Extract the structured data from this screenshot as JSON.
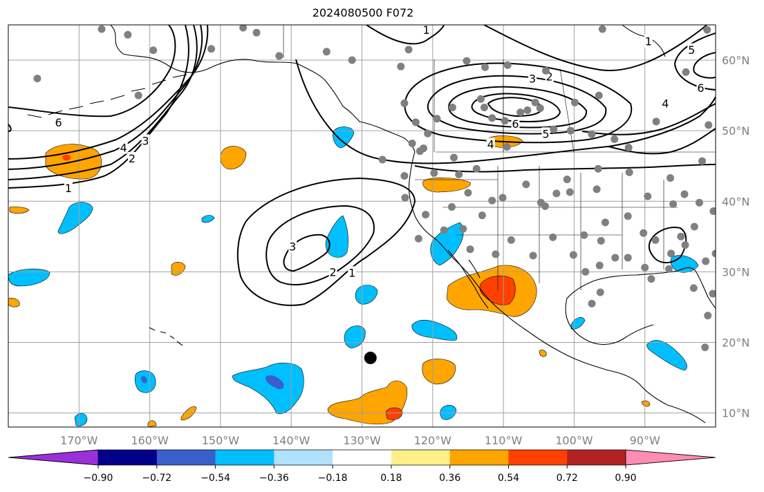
{
  "title": "2024080500 F072",
  "colors": {
    "station_marker": "#808080",
    "storm_marker": "#000000",
    "contour_line": "#000000",
    "gridline": "#a0a0a0",
    "coastline": "#000000"
  },
  "map": {
    "projection": "equirectangular",
    "lon_range": [
      -180,
      -80
    ],
    "lat_range": [
      8,
      65
    ],
    "grid": true,
    "lon_ticks": [
      {
        "lon": -170,
        "label": "170°W"
      },
      {
        "lon": -160,
        "label": "160°W"
      },
      {
        "lon": -150,
        "label": "150°W"
      },
      {
        "lon": -140,
        "label": "140°W"
      },
      {
        "lon": -130,
        "label": "130°W"
      },
      {
        "lon": -120,
        "label": "120°W"
      },
      {
        "lon": -110,
        "label": "110°W"
      },
      {
        "lon": -100,
        "label": "100°W"
      },
      {
        "lon": -90,
        "label": "90°W"
      }
    ],
    "lat_ticks": [
      {
        "lat": 60,
        "label": "60°N"
      },
      {
        "lat": 50,
        "label": "50°N"
      },
      {
        "lat": 40,
        "label": "40°N"
      },
      {
        "lat": 30,
        "label": "30°N"
      },
      {
        "lat": 20,
        "label": "20°N"
      },
      {
        "lat": 10,
        "label": "10°N"
      }
    ]
  },
  "colorbar": {
    "extend": "both",
    "segments": [
      {
        "color": "#9b30d9"
      },
      {
        "color": "#00008b"
      },
      {
        "color": "#3a5fcd"
      },
      {
        "color": "#00bfff"
      },
      {
        "color": "#b0e2ff"
      },
      {
        "color": "#ffffff"
      },
      {
        "color": "#fff08a"
      },
      {
        "color": "#ffa500"
      },
      {
        "color": "#ff4000"
      },
      {
        "color": "#b22222"
      },
      {
        "color": "#ff8cb4"
      }
    ],
    "tick_labels": [
      "−0.90",
      "−0.72",
      "−0.54",
      "−0.36",
      "−0.18",
      "0.18",
      "0.36",
      "0.54",
      "0.72",
      "0.90"
    ]
  },
  "contour_labels": [
    {
      "text": "1",
      "lon": -171.5,
      "lat": 41.8
    },
    {
      "text": "2",
      "lon": -162.5,
      "lat": 46.0
    },
    {
      "text": "3",
      "lon": -160.6,
      "lat": 48.5
    },
    {
      "text": "4",
      "lon": -163.7,
      "lat": 47.5
    },
    {
      "text": "6",
      "lon": -172.9,
      "lat": 51.1
    },
    {
      "text": "3",
      "lon": -139.8,
      "lat": 33.5
    },
    {
      "text": "2",
      "lon": -134.1,
      "lat": 29.9
    },
    {
      "text": "1",
      "lon": -131.4,
      "lat": 29.8
    },
    {
      "text": "3",
      "lon": -105.9,
      "lat": 57.3
    },
    {
      "text": "2",
      "lon": -103.5,
      "lat": 57.6
    },
    {
      "text": "6",
      "lon": -108.3,
      "lat": 50.9
    },
    {
      "text": "5",
      "lon": -104.0,
      "lat": 49.5
    },
    {
      "text": "4",
      "lon": -111.8,
      "lat": 48.0
    },
    {
      "text": "4",
      "lon": -87.1,
      "lat": 53.8
    },
    {
      "text": "6",
      "lon": -82.1,
      "lat": 56.0
    },
    {
      "text": "5",
      "lon": -83.4,
      "lat": 61.4
    },
    {
      "text": "1",
      "lon": -120.9,
      "lat": 64.2
    },
    {
      "text": "1",
      "lon": -89.5,
      "lat": 62.6
    }
  ],
  "stations": [
    [
      -166.8,
      64.4
    ],
    [
      -163.1,
      63.6
    ],
    [
      -159.5,
      61.4
    ],
    [
      -175.9,
      57.4
    ],
    [
      -161.6,
      55.0
    ],
    [
      -151.3,
      61.6
    ],
    [
      -146.8,
      64.6
    ],
    [
      -144.9,
      63.9
    ],
    [
      -141.7,
      60.6
    ],
    [
      -135.0,
      61.2
    ],
    [
      -131.4,
      60.0
    ],
    [
      -123.4,
      61.5
    ],
    [
      -124.5,
      59.1
    ],
    [
      -115.2,
      59.9
    ],
    [
      -109.4,
      59.3
    ],
    [
      -104.0,
      58.5
    ],
    [
      -96.0,
      64.4
    ],
    [
      -84.2,
      58.3
    ],
    [
      -81.2,
      64.3
    ],
    [
      -124.0,
      53.9
    ],
    [
      -119.4,
      51.7
    ],
    [
      -120.7,
      49.6
    ],
    [
      -117.2,
      53.3
    ],
    [
      -113.2,
      54.5
    ],
    [
      -112.7,
      53.3
    ],
    [
      -111.6,
      51.8
    ],
    [
      -109.8,
      51.4
    ],
    [
      -107.6,
      52.6
    ],
    [
      -105.5,
      54.0
    ],
    [
      -106.6,
      52.9
    ],
    [
      -104.8,
      53.2
    ],
    [
      -102.9,
      50.2
    ],
    [
      -100.5,
      50.0
    ],
    [
      -97.5,
      49.5
    ],
    [
      -94.3,
      48.8
    ],
    [
      -96.5,
      55.0
    ],
    [
      -99.9,
      54.0
    ],
    [
      -88.4,
      51.3
    ],
    [
      -81.0,
      50.8
    ],
    [
      -92.3,
      47.6
    ],
    [
      -96.6,
      44.6
    ],
    [
      -100.6,
      41.3
    ],
    [
      -104.7,
      39.8
    ],
    [
      -109.5,
      47.7
    ],
    [
      -113.8,
      44.6
    ],
    [
      -117.0,
      46.2
    ],
    [
      -121.8,
      47.1
    ],
    [
      -124.0,
      43.6
    ],
    [
      -123.9,
      40.5
    ],
    [
      -121.0,
      38.1
    ],
    [
      -122.0,
      34.7
    ],
    [
      -118.4,
      35.9
    ],
    [
      -115.7,
      36.1
    ],
    [
      -114.7,
      33.2
    ],
    [
      -111.1,
      32.5
    ],
    [
      -108.9,
      34.5
    ],
    [
      -105.8,
      32.3
    ],
    [
      -103.0,
      34.9
    ],
    [
      -100.1,
      32.4
    ],
    [
      -98.4,
      30.0
    ],
    [
      -96.3,
      27.1
    ],
    [
      -97.5,
      25.5
    ],
    [
      -94.2,
      32.0
    ],
    [
      -90.0,
      30.6
    ],
    [
      -86.6,
      30.4
    ],
    [
      -84.3,
      33.8
    ],
    [
      -83.1,
      27.7
    ],
    [
      -80.4,
      26.9
    ],
    [
      -81.1,
      23.8
    ],
    [
      -81.5,
      19.3
    ],
    [
      -95.6,
      37.0
    ],
    [
      -92.4,
      37.9
    ],
    [
      -89.6,
      40.7
    ],
    [
      -86.4,
      43.3
    ],
    [
      -84.4,
      41.0
    ],
    [
      -81.9,
      45.7
    ],
    [
      -82.3,
      39.8
    ],
    [
      -80.3,
      38.6
    ],
    [
      -83.0,
      36.4
    ],
    [
      -84.9,
      35.0
    ],
    [
      -88.5,
      34.5
    ],
    [
      -90.2,
      35.5
    ],
    [
      -92.4,
      32.0
    ],
    [
      -96.4,
      30.9
    ],
    [
      -89.1,
      29.0
    ],
    [
      -101.0,
      43.1
    ],
    [
      -102.5,
      41.1
    ],
    [
      -104.1,
      39.3
    ],
    [
      -96.8,
      41.7
    ],
    [
      -96.2,
      34.4
    ],
    [
      -98.6,
      35.2
    ],
    [
      -106.8,
      42.4
    ],
    [
      -111.6,
      40.1
    ],
    [
      -110.1,
      40.5
    ],
    [
      -115.0,
      41.2
    ],
    [
      -117.3,
      39.2
    ],
    [
      -119.8,
      44.0
    ],
    [
      -113.0,
      38.0
    ],
    [
      -121.3,
      47.5
    ],
    [
      -116.3,
      43.8
    ],
    [
      -122.9,
      48.2
    ],
    [
      -112.6,
      59.0
    ],
    [
      -122.4,
      51.2
    ],
    [
      -127.1,
      45.9
    ],
    [
      -92.2,
      44.1
    ],
    [
      -86.0,
      39.6
    ],
    [
      -86.3,
      32.6
    ],
    [
      -81.4,
      31.5
    ],
    [
      -80.0,
      32.6
    ]
  ],
  "storm_marker": {
    "lon": -128.8,
    "lat": 17.8
  }
}
